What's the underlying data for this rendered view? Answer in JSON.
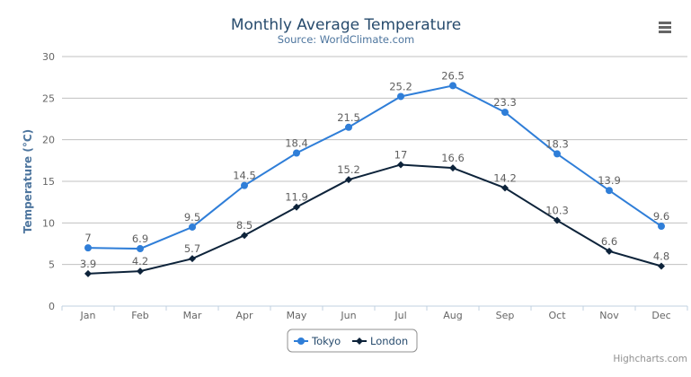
{
  "chart_data": {
    "type": "line",
    "title": "Monthly Average Temperature",
    "subtitle": "Source: WorldClimate.com",
    "xlabel": "",
    "ylabel": "Temperature (°C)",
    "categories": [
      "Jan",
      "Feb",
      "Mar",
      "Apr",
      "May",
      "Jun",
      "Jul",
      "Aug",
      "Sep",
      "Oct",
      "Nov",
      "Dec"
    ],
    "ylim": [
      0,
      30
    ],
    "yticks": [
      0,
      5,
      10,
      15,
      20,
      25,
      30
    ],
    "grid": true,
    "legend_position": "bottom-center",
    "data_labels": true,
    "series": [
      {
        "name": "Tokyo",
        "color": "#2f7ed8",
        "marker": "circle",
        "values": [
          7.0,
          6.9,
          9.5,
          14.5,
          18.4,
          21.5,
          25.2,
          26.5,
          23.3,
          18.3,
          13.9,
          9.6
        ]
      },
      {
        "name": "London",
        "color": "#0d233a",
        "marker": "diamond",
        "values": [
          3.9,
          4.2,
          5.7,
          8.5,
          11.9,
          15.2,
          17.0,
          16.6,
          14.2,
          10.3,
          6.6,
          4.8
        ]
      }
    ]
  },
  "credits": "Highcharts.com",
  "menu_icon": "hamburger-menu-icon"
}
